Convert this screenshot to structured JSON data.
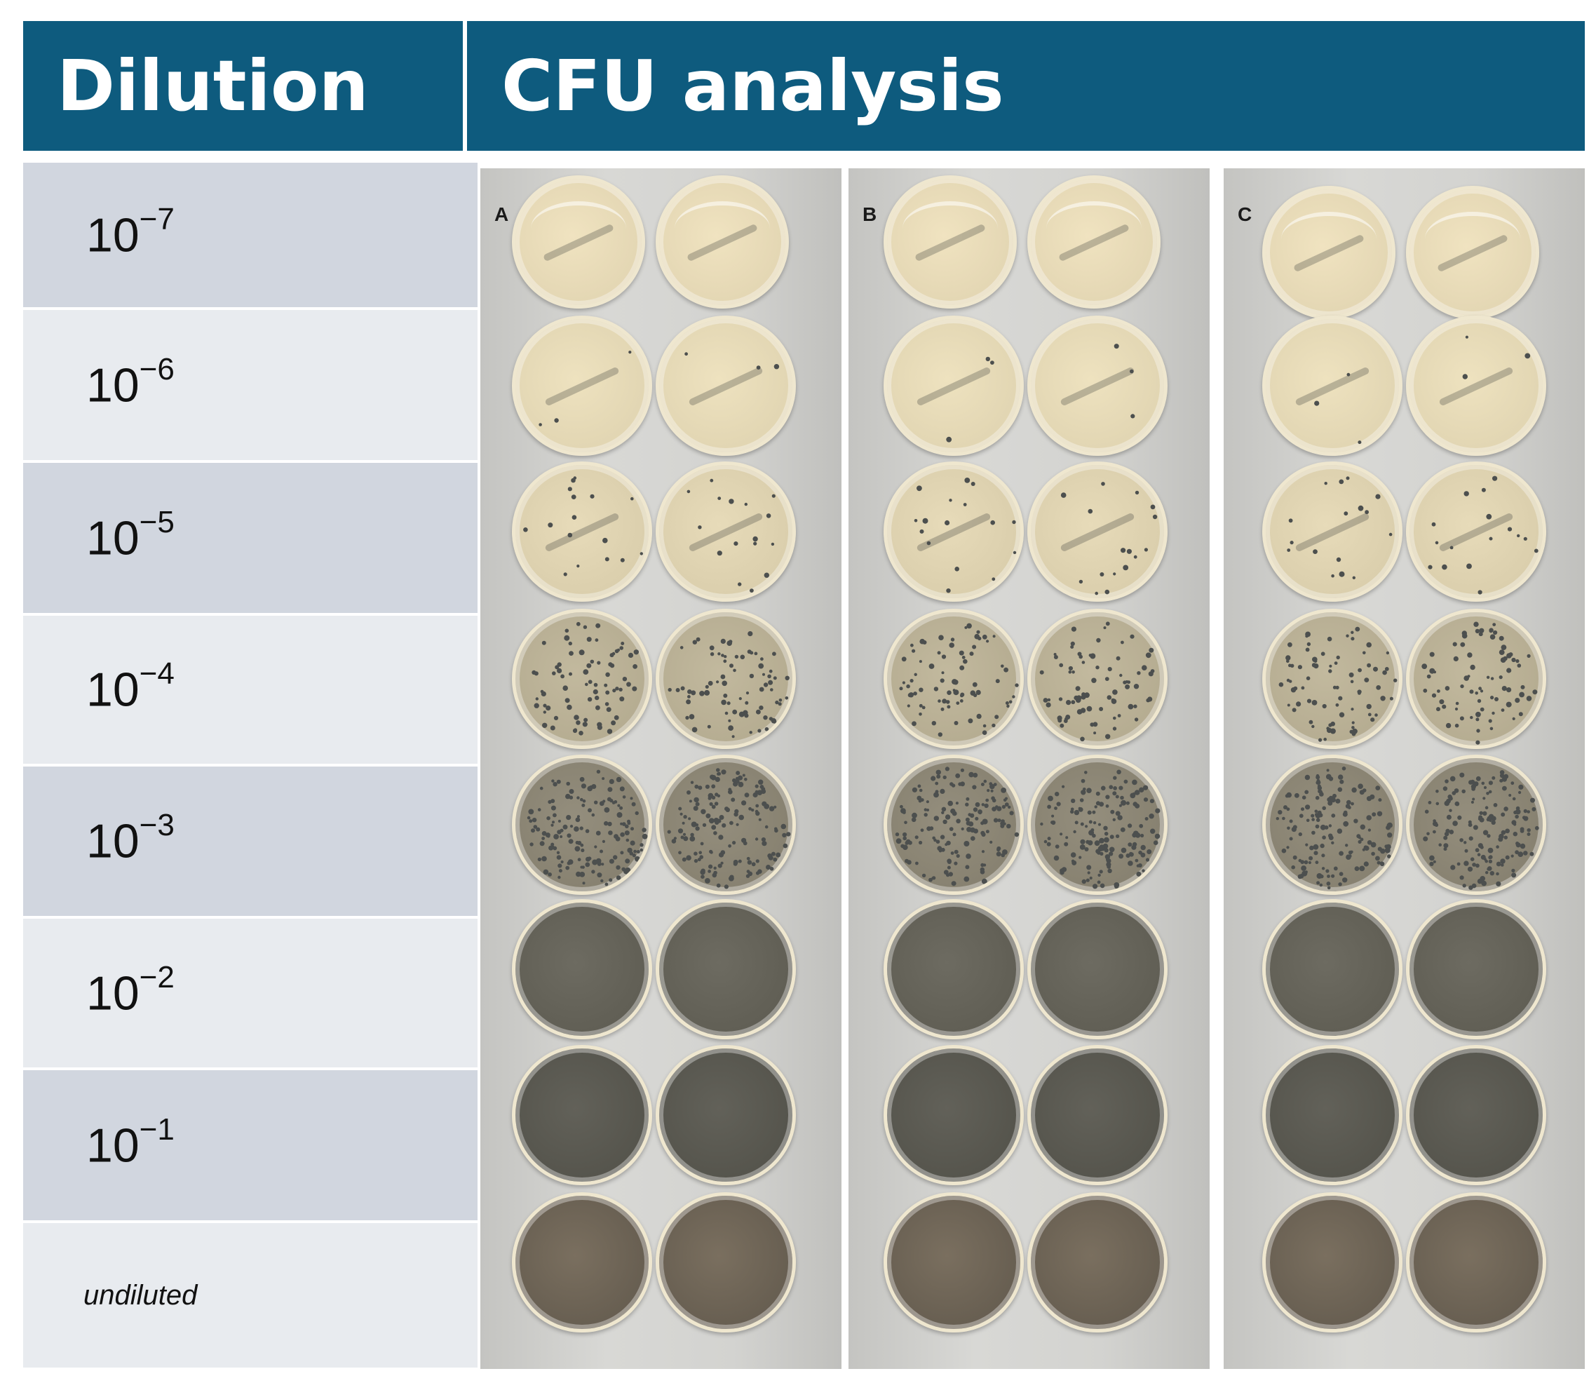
{
  "header": {
    "dilution_label": "Dilution",
    "analysis_label": "CFU analysis"
  },
  "rows": [
    {
      "base": "10",
      "exp": "−7",
      "shade": "dark"
    },
    {
      "base": "10",
      "exp": "−6",
      "shade": "light"
    },
    {
      "base": "10",
      "exp": "−5",
      "shade": "dark"
    },
    {
      "base": "10",
      "exp": "−4",
      "shade": "light"
    },
    {
      "base": "10",
      "exp": "−3",
      "shade": "dark"
    },
    {
      "base": "10",
      "exp": "−2",
      "shade": "light"
    },
    {
      "base": "10",
      "exp": "−1",
      "shade": "dark"
    },
    {
      "base": "",
      "exp": "",
      "text": "undiluted",
      "shade": "light"
    }
  ],
  "panels": [
    {
      "letter": "A"
    },
    {
      "letter": "B"
    },
    {
      "letter": "C"
    }
  ],
  "colors": {
    "header_bg": "#0e5b7e",
    "row_dark": "#d1d6df",
    "row_light": "#e8ebef",
    "agar": "#f0e3c0",
    "colony_dark": "#4c4f4e"
  },
  "growth_levels": [
    0,
    0.01,
    0.06,
    0.3,
    0.6,
    0.85,
    0.95,
    1.0
  ]
}
